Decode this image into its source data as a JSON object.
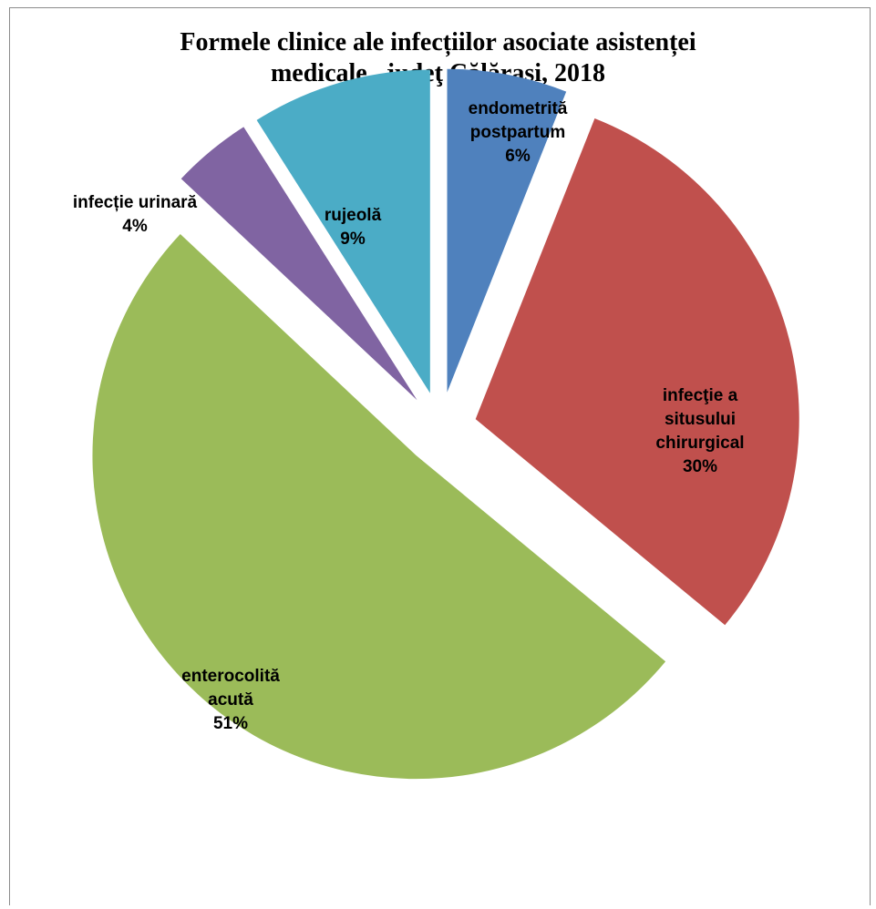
{
  "chart_data": {
    "type": "pie",
    "title": "Formele clinice ale infecțiilor asociate asistenței\nmedicale , judeţ Călăraşi, 2018",
    "slices": [
      {
        "name": "endometrită postpartum",
        "value": 6,
        "label": [
          "endometrită",
          "postpartum",
          "6%"
        ],
        "color": "#4f81bd"
      },
      {
        "name": "infecţie a situsului chirurgical",
        "value": 30,
        "label": [
          "infecţie a",
          "situsului",
          "chirurgical",
          "30%"
        ],
        "color": "#c0504d"
      },
      {
        "name": "enterocolită acută",
        "value": 51,
        "label": [
          "enterocolită",
          "acută",
          "51%"
        ],
        "color": "#9bbb59"
      },
      {
        "name": "infecție urinară",
        "value": 4,
        "label": [
          "infecție urinară",
          "4%"
        ],
        "color": "#8064a2"
      },
      {
        "name": "rujeolă",
        "value": 9,
        "label": [
          "rujeolă",
          "9%"
        ],
        "color": "#4bacc6"
      }
    ]
  }
}
